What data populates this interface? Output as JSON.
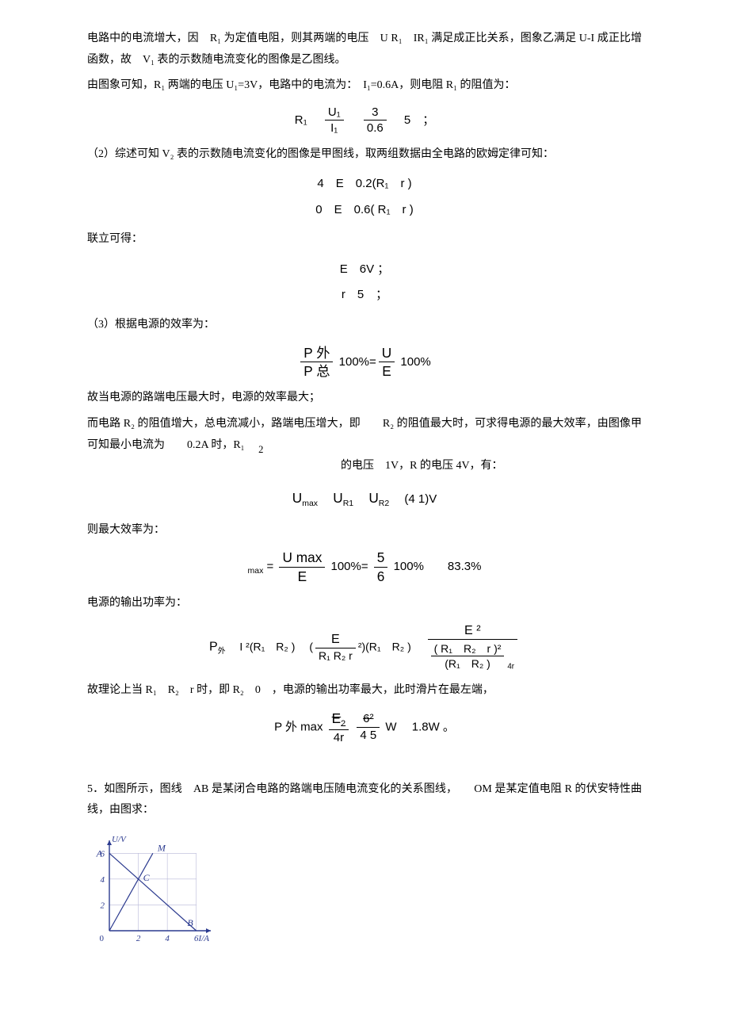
{
  "p1": "电路中的电流增大，因　R₁ 为定值电阻，则其两端的电压　U R₁　IR₁ 满足成正比关系，图象乙满足 U-I 成正比增函数，故　V₁ 表的示数随电流变化的图像是乙图线。",
  "p2": "由图象可知，R₁ 两端的电压 U₁=3V，电路中的电流为：　I₁=0.6A，则电阻 R₁ 的阻值为：",
  "f1": {
    "lhs": "R₁",
    "n1": "U₁",
    "d1": "I₁",
    "n2": "3",
    "d2": "0.6",
    "rhs": "5　；"
  },
  "p3": "（2）综述可知 V₂ 表的示数随电流变化的图像是甲图线，取两组数据由全电路的欧姆定律可知：",
  "f2a": "4　E　0.2(R₁　r )",
  "f2b": "0　E　0.6( R₁　r )",
  "p4": "联立可得：",
  "f3a": "E　6V ；",
  "f3b": "r　5　；",
  "p5": "（3）根据电源的效率为：",
  "f4": {
    "n1": "P 外",
    "d1": "P 总",
    "mid": "100%=",
    "n2": "U",
    "d2": "E",
    "rhs": "100%"
  },
  "p6": "故当电源的路端电压最大时，电源的效率最大；",
  "p7a": "而电路 R₂ 的阻值增大，总电流减小，路端电压增大，即　　R₂ 的阻值最大时，可求得电源的最大效率，由图像甲可知最小电流为　　0.2A 时，R₁",
  "p7b": "的电压　1V，R 的电压 4V，有：",
  "f5": {
    "pre": "U",
    "sub1": "max",
    "mid1": "U",
    "sub2": "R1",
    "mid2": "U",
    "sub3": "R2",
    "rhs": "(4  1)V"
  },
  "p8": "则最大效率为：",
  "f6": {
    "lhs_sub": "max",
    "eq": "=",
    "n1": "U max",
    "d1": "E",
    "mid": "100%=",
    "n2": "5",
    "d2": "6",
    "rhs": "100%　　83.3%"
  },
  "p9": "电源的输出功率为：",
  "f7": {
    "lhs": "P",
    "lhs_sub": "外",
    "t1": "I ²(R₁　R₂ )",
    "t2_pre": "(",
    "t2_n": "E",
    "t2_d": "R₁  R₂  r",
    "t2_post": "²)(R₁　R₂ )",
    "t3_n": "E ²",
    "t3_d_n": "( R₁　R₂　r )²",
    "t3_d_d": "(R₁　R₂ )",
    "t3_d_tail": "4r"
  },
  "p10": "故理论上当 R₁　R₂　r 时，即 R₂　0　，电源的输出功率最大，此时滑片在最左端，",
  "f8": {
    "lhs": "P 外 max",
    "n1": "E",
    "d1": "4r",
    "sup1": "2",
    "n2": "6²",
    "d2": "4  5",
    "unit": "W",
    "rhs": "1.8W 。"
  },
  "p11": "5．如图所示，图线　AB 是某闭合电路的路端电压随电流变化的关系图线，　　OM 是某定值电阻 R 的伏安特性曲线，由图求：",
  "chart": {
    "type": "line",
    "width": 170,
    "height": 150,
    "xlim": [
      0,
      7
    ],
    "ylim": [
      0,
      7
    ],
    "xticks": [
      0,
      2,
      4,
      6
    ],
    "yticks": [
      2,
      4,
      6
    ],
    "origin_label": "0",
    "ylabel": "U/V",
    "xlabel": "I/A",
    "labels": {
      "A": "A",
      "M": "M",
      "C": "C",
      "B": "B"
    },
    "axis_color": "#2b3a8f",
    "grid_color": "#b8b8d8",
    "line_color": "#2b3a8f",
    "text_color": "#2b3a8f",
    "line_width": 1.2,
    "series": {
      "AB": [
        [
          0,
          6
        ],
        [
          6,
          0
        ]
      ],
      "OM": [
        [
          0,
          0
        ],
        [
          3,
          6
        ]
      ]
    },
    "intersection": [
      2,
      4
    ]
  }
}
